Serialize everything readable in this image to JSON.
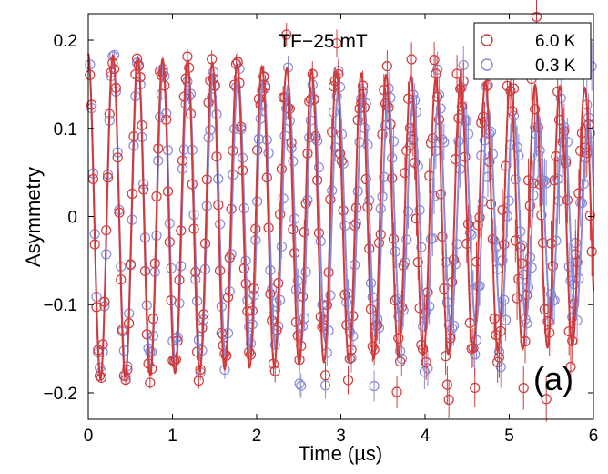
{
  "chart_data": {
    "type": "scatter",
    "annotation": "TF−25 mT",
    "panel_label": "(a)",
    "xlabel": "Time (µs)",
    "ylabel": "Asymmetry",
    "xlim": [
      0,
      6
    ],
    "ylim": [
      -0.23,
      0.23
    ],
    "xticks": [
      0,
      1,
      2,
      3,
      4,
      5,
      6
    ],
    "yticks": [
      -0.2,
      -0.1,
      0,
      0.1,
      0.2
    ],
    "ytick_labels": [
      "−0.2",
      "−0.1",
      "0",
      "0.1",
      "0.2"
    ],
    "grid": false,
    "legend_position": "top-right",
    "series": [
      {
        "name": "6.0 K",
        "color": "#d03a3a",
        "marker": "open-circle",
        "fit": {
          "amplitude": 0.185,
          "frequency_MHz": 3.39,
          "relaxation_per_us": 0.04,
          "phase_deg": 3
        },
        "peak_envelope": [
          [
            0,
            0.185
          ],
          [
            1,
            0.18
          ],
          [
            2,
            0.172
          ],
          [
            3,
            0.165
          ],
          [
            4,
            0.158
          ],
          [
            5,
            0.152
          ],
          [
            6,
            0.146
          ]
        ]
      },
      {
        "name": "0.3 K",
        "color": "#8a8ad6",
        "marker": "open-circle",
        "fit": {
          "amplitude": 0.185,
          "frequency_MHz": 3.365,
          "relaxation_per_us": 0.09,
          "phase_deg": 3
        },
        "peak_envelope": [
          [
            0,
            0.185
          ],
          [
            1,
            0.17
          ],
          [
            2,
            0.155
          ],
          [
            3,
            0.14
          ],
          [
            4,
            0.128
          ],
          [
            5,
            0.118
          ],
          [
            6,
            0.108
          ]
        ]
      }
    ]
  }
}
